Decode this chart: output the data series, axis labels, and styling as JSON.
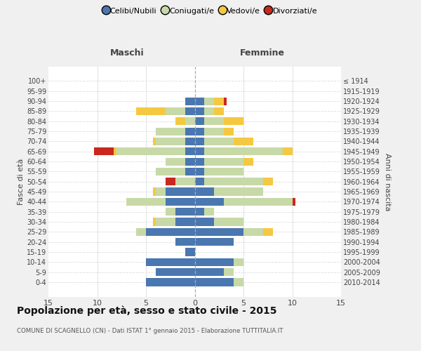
{
  "age_groups": [
    "100+",
    "95-99",
    "90-94",
    "85-89",
    "80-84",
    "75-79",
    "70-74",
    "65-69",
    "60-64",
    "55-59",
    "50-54",
    "45-49",
    "40-44",
    "35-39",
    "30-34",
    "25-29",
    "20-24",
    "15-19",
    "10-14",
    "5-9",
    "0-4"
  ],
  "birth_years": [
    "≤ 1914",
    "1915-1919",
    "1920-1924",
    "1925-1929",
    "1930-1934",
    "1935-1939",
    "1940-1944",
    "1945-1949",
    "1950-1954",
    "1955-1959",
    "1960-1964",
    "1965-1969",
    "1970-1974",
    "1975-1979",
    "1980-1984",
    "1985-1989",
    "1990-1994",
    "1995-1999",
    "2000-2004",
    "2005-2009",
    "2010-2014"
  ],
  "males": {
    "celibi": [
      0,
      0,
      1,
      1,
      0,
      1,
      1,
      1,
      1,
      1,
      0,
      3,
      3,
      2,
      2,
      5,
      2,
      1,
      5,
      4,
      5
    ],
    "coniugati": [
      0,
      0,
      0,
      2,
      1,
      3,
      3,
      7,
      2,
      3,
      2,
      1,
      4,
      1,
      2,
      1,
      0,
      0,
      0,
      0,
      0
    ],
    "vedovi": [
      0,
      0,
      0,
      3,
      1,
      0,
      0.3,
      0.3,
      0,
      0,
      0,
      0.3,
      0,
      0,
      0.3,
      0,
      0,
      0,
      0,
      0,
      0
    ],
    "divorziati": [
      0,
      0,
      0,
      0,
      0,
      0,
      0,
      2,
      0,
      0,
      1,
      0,
      0,
      0,
      0,
      0,
      0,
      0,
      0,
      0,
      0
    ]
  },
  "females": {
    "nubili": [
      0,
      0,
      1,
      1,
      1,
      1,
      1,
      1,
      1,
      1,
      1,
      2,
      3,
      1,
      2,
      5,
      4,
      0,
      4,
      3,
      4
    ],
    "coniugate": [
      0,
      0,
      1,
      1,
      2,
      2,
      3,
      8,
      4,
      4,
      6,
      5,
      7,
      1,
      3,
      2,
      0,
      0,
      1,
      1,
      1
    ],
    "vedove": [
      0,
      0,
      1,
      1,
      2,
      1,
      2,
      1,
      1,
      0,
      1,
      0,
      0,
      0,
      0,
      1,
      0,
      0,
      0,
      0,
      0
    ],
    "divorziate": [
      0,
      0,
      0.3,
      0,
      0,
      0,
      0,
      0,
      0,
      0,
      0,
      0,
      0.3,
      0,
      0,
      0,
      0,
      0,
      0,
      0,
      0
    ]
  },
  "colors": {
    "celibi_nubili": "#4a77b0",
    "coniugati": "#c8d9a8",
    "vedovi": "#f5c842",
    "divorziati": "#c8281e"
  },
  "xlim": 15,
  "title": "Popolazione per età, sesso e stato civile - 2015",
  "subtitle": "COMUNE DI SCAGNELLO (CN) - Dati ISTAT 1° gennaio 2015 - Elaborazione TUTTITALIA.IT",
  "ylabel_left": "Fasce di età",
  "ylabel_right": "Anni di nascita",
  "label_maschi": "Maschi",
  "label_femmine": "Femmine",
  "bg_color": "#f0f0f0",
  "plot_bg_color": "#ffffff",
  "grid_color": "#dddddd",
  "label_color": "#444444"
}
